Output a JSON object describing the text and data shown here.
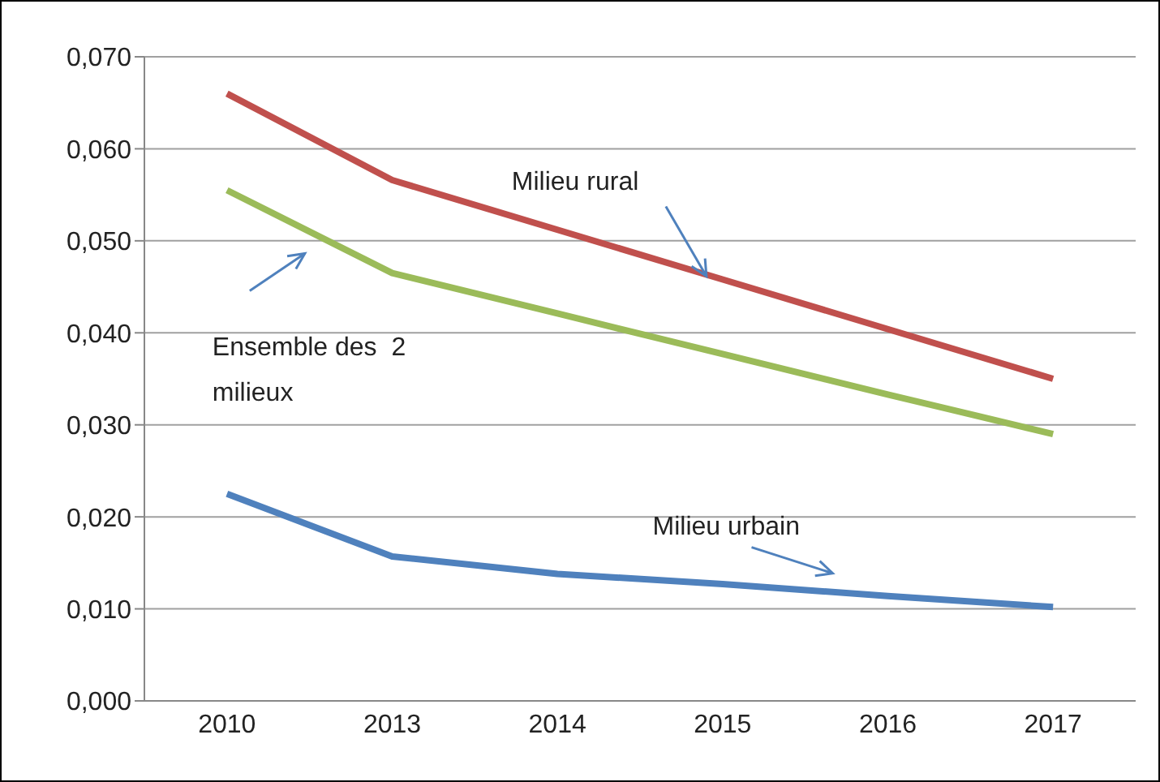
{
  "chart_data": {
    "type": "line",
    "categories": [
      "2010",
      "2013",
      "2014",
      "2015",
      "2016",
      "2017"
    ],
    "series": [
      {
        "name": "Milieu rural",
        "color": "#c0504d",
        "values": [
          0.066,
          0.0566,
          0.0512,
          0.0458,
          0.0404,
          0.035
        ]
      },
      {
        "name": "Ensemble des  2 milieux",
        "color": "#9bbb59",
        "values": [
          0.0555,
          0.0465,
          0.0421,
          0.0377,
          0.0333,
          0.029
        ]
      },
      {
        "name": "Milieu urbain",
        "color": "#4f81bd",
        "values": [
          0.0225,
          0.0157,
          0.0138,
          0.0127,
          0.0114,
          0.0102
        ]
      }
    ],
    "ylim": [
      0,
      0.07
    ],
    "yticks": [
      {
        "value": 0,
        "label": "0,000"
      },
      {
        "value": 0.01,
        "label": "0,010"
      },
      {
        "value": 0.02,
        "label": "0,020"
      },
      {
        "value": 0.03,
        "label": "0,030"
      },
      {
        "value": 0.04,
        "label": "0,040"
      },
      {
        "value": 0.05,
        "label": "0,050"
      },
      {
        "value": 0.06,
        "label": "0,060"
      },
      {
        "value": 0.07,
        "label": "0,070"
      }
    ],
    "grid": "y",
    "legend": false,
    "marker": "none",
    "line_style": "solid"
  }
}
